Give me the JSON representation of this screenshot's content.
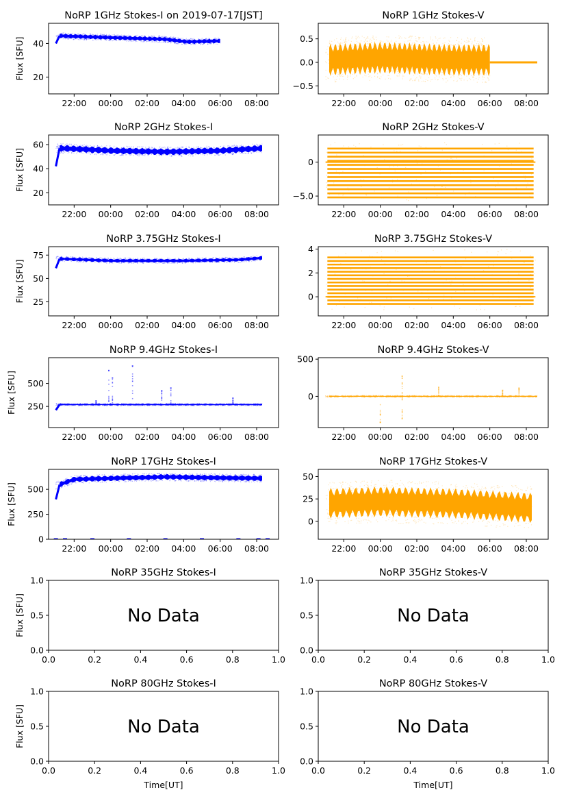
{
  "chart_data": [
    {
      "id": "p1",
      "type": "scatter",
      "title": "NoRP 1GHz Stokes-I on 2019-07-17[JST]",
      "ylabel": "Flux [SFU]",
      "xlabel": "",
      "color": "#0000ff",
      "xticks": [
        "22:00",
        "00:00",
        "02:00",
        "04:00",
        "06:00",
        "08:00"
      ],
      "xlim_hours": [
        20.6,
        33.2
      ],
      "ylim": [
        10,
        52
      ],
      "yticks": [
        20,
        40
      ],
      "series": {
        "start_h": 21.0,
        "end_h": 30.0,
        "start_val": 40,
        "level": [
          [
            21.2,
            44.5
          ],
          [
            24,
            43.5
          ],
          [
            27,
            42.5
          ],
          [
            28.2,
            41.0
          ],
          [
            30,
            41.5
          ]
        ],
        "spread": 1.2
      }
    },
    {
      "id": "p2",
      "type": "scatter",
      "title": "NoRP 1GHz Stokes-V",
      "ylabel": "",
      "xlabel": "",
      "color": "#ffa500",
      "xticks": [
        "22:00",
        "00:00",
        "02:00",
        "04:00",
        "06:00",
        "08:00"
      ],
      "xlim_hours": [
        20.6,
        33.2
      ],
      "ylim": [
        -0.67,
        0.83
      ],
      "yticks": [
        -0.5,
        0.0,
        0.5
      ],
      "series": {
        "start_h": 21.0,
        "end_h": 30.0,
        "tail_end_h": 32.6,
        "tail_val": 0.0,
        "level": [
          [
            21,
            0.05
          ],
          [
            24,
            0.1
          ],
          [
            28,
            0.05
          ],
          [
            30,
            0.05
          ]
        ],
        "spread": 0.3
      }
    },
    {
      "id": "p3",
      "type": "scatter",
      "title": "NoRP 2GHz Stokes-I",
      "ylabel": "Flux [SFU]",
      "xlabel": "",
      "color": "#0000ff",
      "xticks": [
        "22:00",
        "00:00",
        "02:00",
        "04:00",
        "06:00",
        "08:00"
      ],
      "xlim_hours": [
        20.6,
        33.2
      ],
      "ylim": [
        10,
        68
      ],
      "yticks": [
        20,
        40,
        60
      ],
      "series": {
        "start_h": 21.0,
        "end_h": 32.3,
        "start_val": 42,
        "level": [
          [
            21.3,
            57
          ],
          [
            24,
            55
          ],
          [
            27,
            54
          ],
          [
            30,
            55
          ],
          [
            32.3,
            57
          ]
        ],
        "spread": 2.5
      }
    },
    {
      "id": "p4",
      "type": "bands",
      "title": "NoRP 2GHz Stokes-V",
      "ylabel": "",
      "xlabel": "",
      "color": "#ffa500",
      "xticks": [
        "22:00",
        "00:00",
        "02:00",
        "04:00",
        "06:00",
        "08:00"
      ],
      "xlim_hours": [
        20.6,
        33.2
      ],
      "ylim": [
        -6.3,
        4.0
      ],
      "yticks": [
        -5,
        0
      ],
      "series": {
        "start_h": 21.0,
        "end_h": 32.5,
        "band_min": -5.2,
        "band_max": 2.4,
        "band_step": 0.6
      }
    },
    {
      "id": "p5",
      "type": "scatter",
      "title": "NoRP 3.75GHz Stokes-I",
      "ylabel": "Flux [SFU]",
      "xlabel": "",
      "color": "#0000ff",
      "xticks": [
        "22:00",
        "00:00",
        "02:00",
        "04:00",
        "06:00",
        "08:00"
      ],
      "xlim_hours": [
        20.6,
        33.2
      ],
      "ylim": [
        10,
        84
      ],
      "yticks": [
        25,
        50,
        75
      ],
      "series": {
        "start_h": 21.0,
        "end_h": 32.3,
        "start_val": 61,
        "level": [
          [
            21.3,
            71
          ],
          [
            24,
            69
          ],
          [
            28,
            69
          ],
          [
            31,
            70
          ],
          [
            32.3,
            72
          ]
        ],
        "spread": 1.8
      }
    },
    {
      "id": "p6",
      "type": "bands",
      "title": "NoRP 3.75GHz Stokes-V",
      "ylabel": "",
      "xlabel": "",
      "color": "#ffa500",
      "xticks": [
        "22:00",
        "00:00",
        "02:00",
        "04:00",
        "06:00",
        "08:00"
      ],
      "xlim_hours": [
        20.6,
        33.2
      ],
      "ylim": [
        -1.6,
        4.2
      ],
      "yticks": [
        0,
        2,
        4
      ],
      "series": {
        "start_h": 21.0,
        "end_h": 32.5,
        "band_min": -0.6,
        "band_max": 3.5,
        "band_step": 0.3
      }
    },
    {
      "id": "p7",
      "type": "scatter",
      "title": "NoRP 9.4GHz Stokes-I",
      "ylabel": "Flux [SFU]",
      "xlabel": "",
      "color": "#0000ff",
      "xticks": [
        "22:00",
        "00:00",
        "02:00",
        "04:00",
        "06:00",
        "08:00"
      ],
      "xlim_hours": [
        20.6,
        33.2
      ],
      "ylim": [
        20,
        780
      ],
      "yticks": [
        250,
        500
      ],
      "series": {
        "start_h": 21.0,
        "end_h": 32.3,
        "start_val": 210,
        "level": [
          [
            21.3,
            270
          ],
          [
            32.3,
            270
          ]
        ],
        "spread": 8,
        "spikes": [
          [
            23.9,
            640
          ],
          [
            24.1,
            560
          ],
          [
            25.2,
            690
          ],
          [
            26.8,
            420
          ],
          [
            27.3,
            450
          ],
          [
            30.7,
            340
          ],
          [
            23.2,
            310
          ]
        ]
      }
    },
    {
      "id": "p8",
      "type": "scatter",
      "title": "NoRP 9.4GHz Stokes-V",
      "ylabel": "",
      "xlabel": "",
      "color": "#ffa500",
      "xticks": [
        "22:00",
        "00:00",
        "02:00",
        "04:00",
        "06:00",
        "08:00"
      ],
      "xlim_hours": [
        20.6,
        33.2
      ],
      "ylim": [
        -420,
        520
      ],
      "yticks": [
        0,
        500
      ],
      "series": {
        "start_h": 21.0,
        "end_h": 32.6,
        "level": [
          [
            21,
            0
          ],
          [
            32.6,
            0
          ]
        ],
        "spread": 8,
        "spikes": [
          [
            24.0,
            -350
          ],
          [
            25.2,
            270
          ],
          [
            25.2,
            -300
          ],
          [
            27.2,
            120
          ],
          [
            30.7,
            80
          ],
          [
            31.6,
            110
          ]
        ]
      }
    },
    {
      "id": "p9",
      "type": "scatter",
      "title": "NoRP 17GHz Stokes-I",
      "ylabel": "Flux [SFU]",
      "xlabel": "",
      "color": "#0000ff",
      "xticks": [
        "22:00",
        "00:00",
        "02:00",
        "04:00",
        "06:00",
        "08:00"
      ],
      "xlim_hours": [
        20.6,
        33.2
      ],
      "ylim": [
        0,
        700
      ],
      "yticks": [
        0,
        250,
        500
      ],
      "series": {
        "start_h": 21.0,
        "end_h": 32.3,
        "start_val": 400,
        "level": [
          [
            21.1,
            540
          ],
          [
            22.0,
            600
          ],
          [
            24,
            610
          ],
          [
            27,
            625
          ],
          [
            30,
            615
          ],
          [
            32.3,
            610
          ]
        ],
        "spread": 25,
        "zero_marks_h": [
          21.0,
          21.5,
          23.0,
          25.0,
          27.0,
          29.0,
          31.0,
          32.1,
          32.6
        ]
      }
    },
    {
      "id": "p10",
      "type": "scatter",
      "title": "NoRP 17GHz Stokes-V",
      "ylabel": "",
      "xlabel": "",
      "color": "#ffa500",
      "xticks": [
        "22:00",
        "00:00",
        "02:00",
        "04:00",
        "06:00",
        "08:00"
      ],
      "xlim_hours": [
        20.6,
        33.2
      ],
      "ylim": [
        -20,
        58
      ],
      "yticks": [
        0,
        25,
        50
      ],
      "series": {
        "start_h": 21.0,
        "end_h": 32.3,
        "level": [
          [
            21,
            20
          ],
          [
            24,
            22
          ],
          [
            28,
            20
          ],
          [
            32.3,
            15
          ]
        ],
        "spread": 15
      }
    },
    {
      "id": "p11",
      "type": "empty",
      "title": "NoRP 35GHz Stokes-I",
      "ylabel": "Flux [SFU]",
      "xlabel": "",
      "message": "No Data",
      "xticks": [
        "0.0",
        "0.2",
        "0.4",
        "0.6",
        "0.8",
        "1.0"
      ],
      "yticks": [
        "0.0",
        "0.5",
        "1.0"
      ],
      "xlim": [
        0,
        1
      ],
      "ylim": [
        0,
        1
      ]
    },
    {
      "id": "p12",
      "type": "empty",
      "title": "NoRP 35GHz Stokes-V",
      "ylabel": "",
      "xlabel": "",
      "message": "No Data",
      "xticks": [
        "0.0",
        "0.2",
        "0.4",
        "0.6",
        "0.8",
        "1.0"
      ],
      "yticks": [
        "0.0",
        "0.5",
        "1.0"
      ],
      "xlim": [
        0,
        1
      ],
      "ylim": [
        0,
        1
      ]
    },
    {
      "id": "p13",
      "type": "empty",
      "title": "NoRP 80GHz Stokes-I",
      "ylabel": "Flux [SFU]",
      "xlabel": "Time[UT]",
      "message": "No Data",
      "xticks": [
        "0.0",
        "0.2",
        "0.4",
        "0.6",
        "0.8",
        "1.0"
      ],
      "yticks": [
        "0.0",
        "0.5",
        "1.0"
      ],
      "xlim": [
        0,
        1
      ],
      "ylim": [
        0,
        1
      ]
    },
    {
      "id": "p14",
      "type": "empty",
      "title": "NoRP 80GHz Stokes-V",
      "ylabel": "",
      "xlabel": "Time[UT]",
      "message": "No Data",
      "xticks": [
        "0.0",
        "0.2",
        "0.4",
        "0.6",
        "0.8",
        "1.0"
      ],
      "yticks": [
        "0.0",
        "0.5",
        "1.0"
      ],
      "xlim": [
        0,
        1
      ],
      "ylim": [
        0,
        1
      ]
    }
  ]
}
